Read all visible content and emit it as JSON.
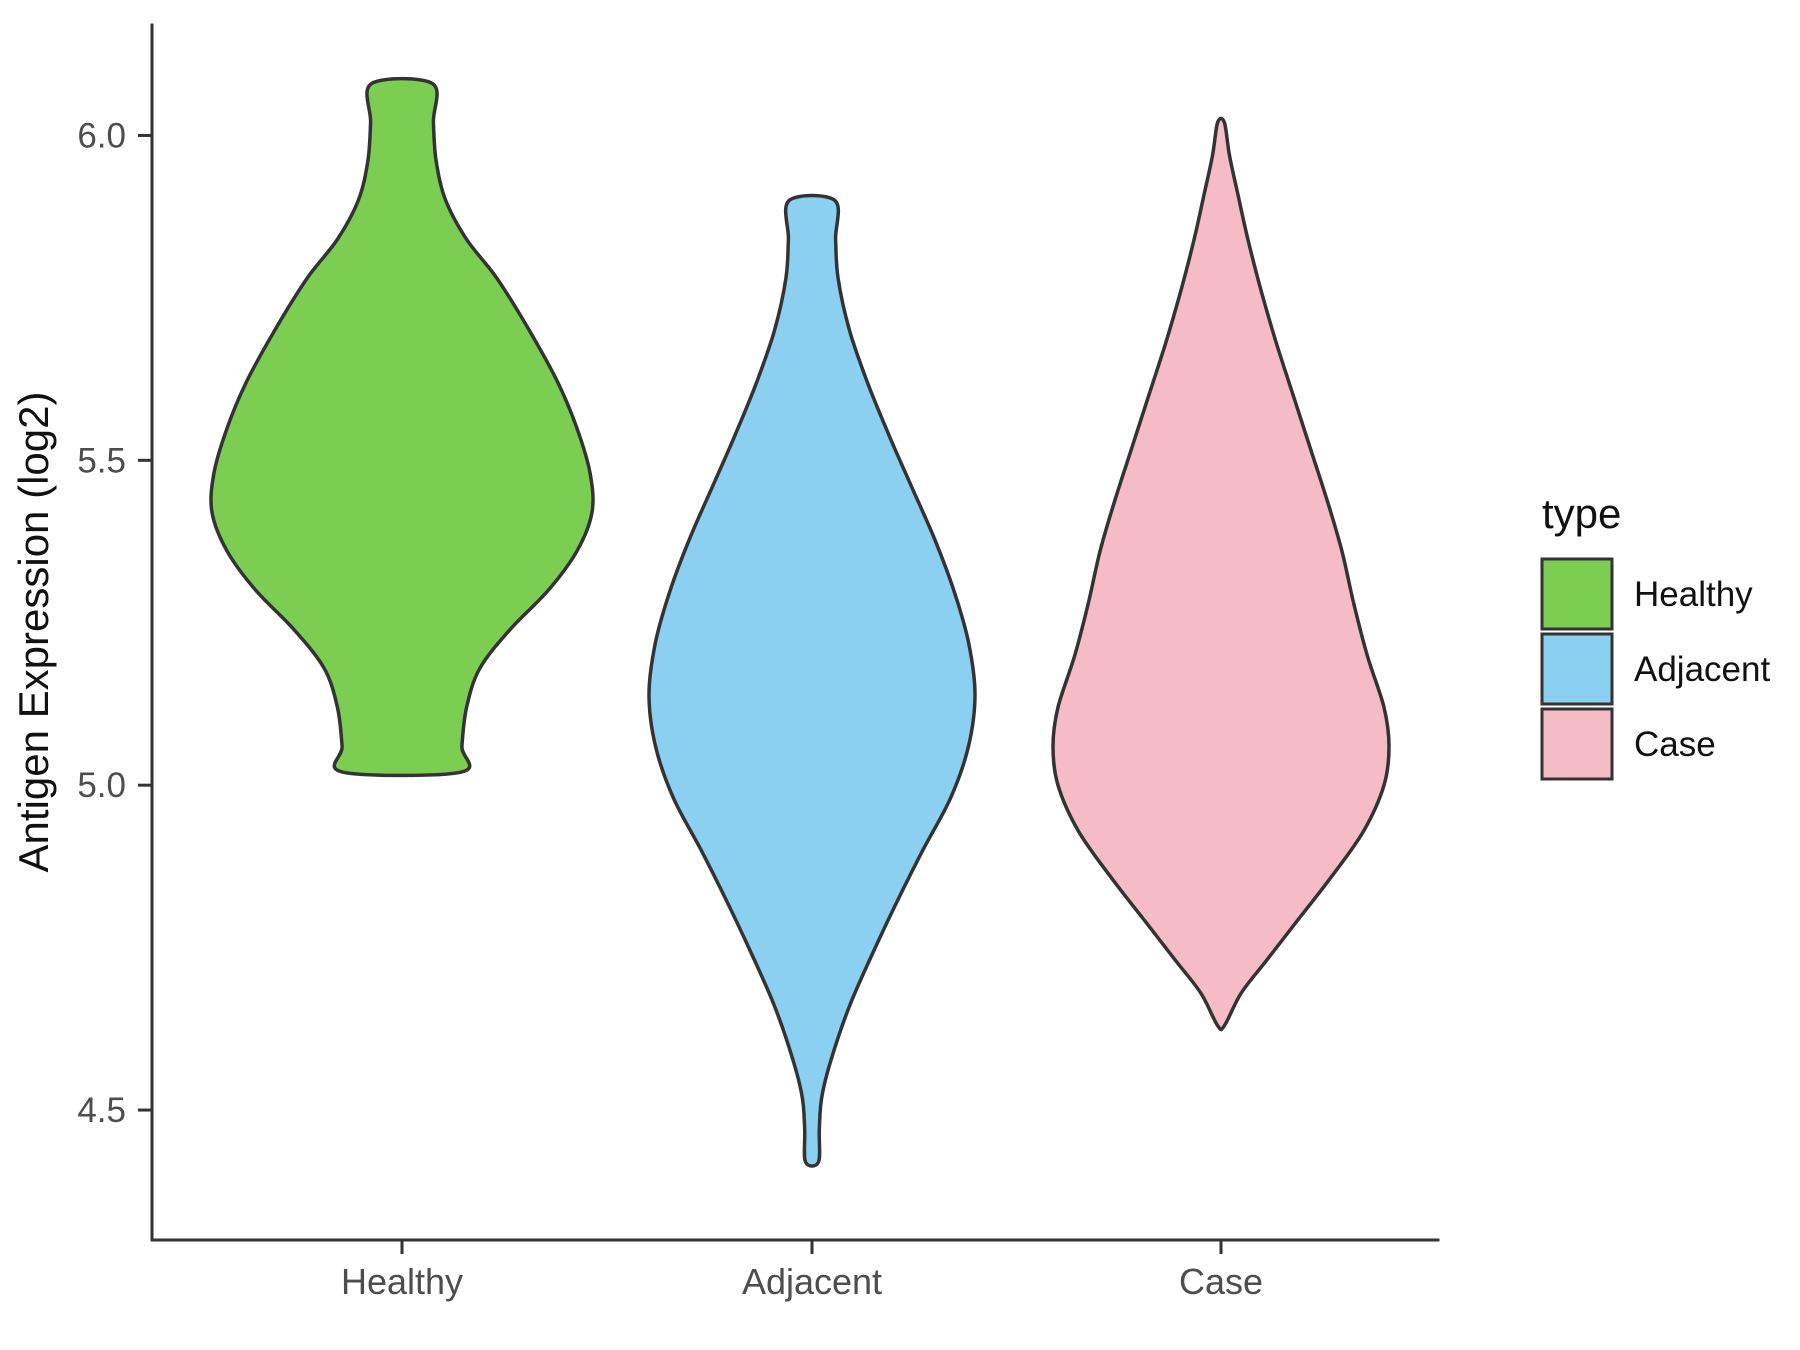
{
  "figure": {
    "background": "#FFFFFF"
  },
  "chart_data": {
    "type": "violin",
    "title": "",
    "xlabel": "",
    "ylabel": "Antigen Expression (log2)",
    "ylim": [
      4.3,
      6.17
    ],
    "yticks": [
      4.5,
      5.0,
      5.5,
      6.0
    ],
    "ytick_labels": [
      "4.5",
      "5.0",
      "5.5",
      "6.0"
    ],
    "categories": [
      "Healthy",
      "Adjacent",
      "Case"
    ],
    "grid": false,
    "legend_position": "right",
    "axis_color": "#333333",
    "tick_label_color": "#4D4D4D",
    "legend": {
      "title": "type",
      "entries": [
        {
          "label": "Healthy",
          "color": "#7BCE51"
        },
        {
          "label": "Adjacent",
          "color": "#8BCFF1"
        },
        {
          "label": "Case",
          "color": "#F5BCC7"
        }
      ]
    },
    "series": [
      {
        "name": "Healthy",
        "color": "#7BCE51",
        "outline": "#333333",
        "value_range": [
          5.02,
          6.08
        ],
        "peak_value": 5.45,
        "profile": [
          [
            6.08,
            0.16
          ],
          [
            6.02,
            0.165
          ],
          [
            5.96,
            0.18
          ],
          [
            5.9,
            0.23
          ],
          [
            5.84,
            0.34
          ],
          [
            5.78,
            0.5
          ],
          [
            5.7,
            0.67
          ],
          [
            5.62,
            0.82
          ],
          [
            5.55,
            0.92
          ],
          [
            5.48,
            0.99
          ],
          [
            5.42,
            1.0
          ],
          [
            5.36,
            0.92
          ],
          [
            5.3,
            0.77
          ],
          [
            5.24,
            0.57
          ],
          [
            5.18,
            0.41
          ],
          [
            5.12,
            0.34
          ],
          [
            5.06,
            0.315
          ],
          [
            5.02,
            0.31
          ]
        ]
      },
      {
        "name": "Adjacent",
        "color": "#8BCFF1",
        "outline": "#333333",
        "value_range": [
          4.42,
          5.9
        ],
        "peak_value": 5.15,
        "profile": [
          [
            5.9,
            0.14
          ],
          [
            5.84,
            0.145
          ],
          [
            5.78,
            0.16
          ],
          [
            5.7,
            0.23
          ],
          [
            5.62,
            0.34
          ],
          [
            5.54,
            0.47
          ],
          [
            5.46,
            0.61
          ],
          [
            5.38,
            0.75
          ],
          [
            5.3,
            0.87
          ],
          [
            5.22,
            0.96
          ],
          [
            5.14,
            1.0
          ],
          [
            5.06,
            0.96
          ],
          [
            4.98,
            0.85
          ],
          [
            4.9,
            0.68
          ],
          [
            4.82,
            0.52
          ],
          [
            4.74,
            0.37
          ],
          [
            4.66,
            0.23
          ],
          [
            4.58,
            0.12
          ],
          [
            4.52,
            0.06
          ],
          [
            4.47,
            0.045
          ],
          [
            4.42,
            0.04
          ]
        ]
      },
      {
        "name": "Case",
        "color": "#F5BCC7",
        "outline": "#333333",
        "value_range": [
          4.63,
          6.02
        ],
        "peak_value": 5.07,
        "profile": [
          [
            6.02,
            0.02
          ],
          [
            5.97,
            0.05
          ],
          [
            5.91,
            0.1
          ],
          [
            5.84,
            0.16
          ],
          [
            5.76,
            0.24
          ],
          [
            5.68,
            0.33
          ],
          [
            5.6,
            0.43
          ],
          [
            5.52,
            0.53
          ],
          [
            5.44,
            0.63
          ],
          [
            5.36,
            0.72
          ],
          [
            5.28,
            0.79
          ],
          [
            5.2,
            0.87
          ],
          [
            5.12,
            0.97
          ],
          [
            5.06,
            1.0
          ],
          [
            5.0,
            0.97
          ],
          [
            4.93,
            0.85
          ],
          [
            4.86,
            0.66
          ],
          [
            4.79,
            0.45
          ],
          [
            4.73,
            0.27
          ],
          [
            4.68,
            0.12
          ],
          [
            4.63,
            0.02
          ]
        ]
      }
    ]
  }
}
